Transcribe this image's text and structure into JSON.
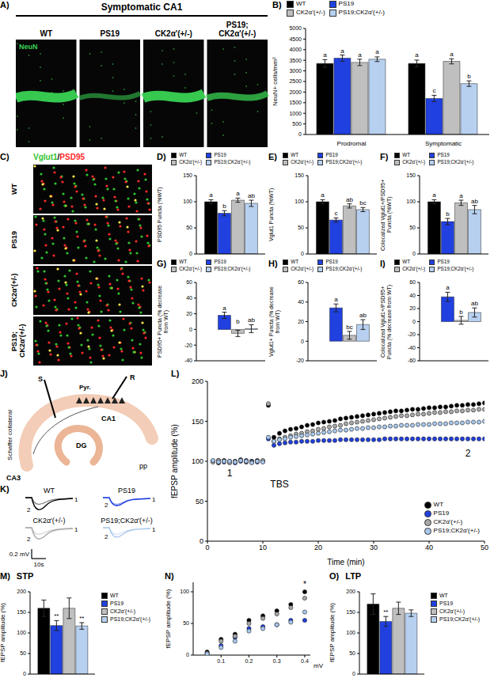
{
  "images": {
    "A": {
      "panel": "A)",
      "title": "Symptomatic CA1",
      "stain": "NeuN",
      "labels": [
        "WT",
        "PS19",
        "CK2α'(+/-)",
        "PS19; CK2α'(+/-)"
      ]
    },
    "C": {
      "panel": "C)",
      "channels": [
        {
          "name": "Vglut1",
          "color": "#2fc42f"
        },
        {
          "name": "PSD95",
          "color": "#ff2a2a"
        }
      ],
      "separator": "/",
      "labels": [
        "WT",
        "PS19",
        "CK2α'(+/-)",
        "PS19; CK2α'(+/-)"
      ]
    },
    "J": {
      "panel": "J)",
      "labels": {
        "stim": "S",
        "record": "R",
        "pyramidal": "Pyr.",
        "collateral": "Schaffer collateral",
        "ca1": "CA1",
        "ca3": "CA3",
        "dg": "DG",
        "pp": "pp"
      }
    },
    "K": {
      "panel": "K)",
      "labels": [
        "WT",
        "PS19",
        "CK2α'(+/-)",
        "PS19;CK2α'(+/-)"
      ],
      "trace_marks": [
        "1",
        "2"
      ],
      "scale_y": "0.2 mV",
      "scale_x": "10s"
    }
  },
  "chart_data": [
    {
      "panel": "B)",
      "type": "bar",
      "ylabel": "NeuN+ cells/mm²",
      "categories": [
        "Prodromal",
        "Symptomatic"
      ],
      "ylim": [
        0,
        5000
      ],
      "yticks": [
        0,
        500,
        1000,
        1500,
        2000,
        2500,
        3000,
        3500,
        4000,
        4500,
        5000
      ],
      "legend": "top",
      "series": [
        {
          "name": "WT",
          "color": "#000000",
          "values": [
            3350,
            3350
          ],
          "errors": [
            180,
            160
          ],
          "letters": [
            "a",
            "a"
          ]
        },
        {
          "name": "PS19",
          "color": "#2040e0",
          "values": [
            3600,
            1700
          ],
          "errors": [
            150,
            150
          ],
          "letters": [
            "a",
            "c"
          ]
        },
        {
          "name": "CK2α'(+/-)",
          "color": "#bfbfbf",
          "values": [
            3400,
            3450
          ],
          "errors": [
            150,
            120
          ],
          "letters": [
            "a",
            "a"
          ]
        },
        {
          "name": "PS19;CK2α'(+/-)",
          "color": "#b7d0f0",
          "values": [
            3550,
            2400
          ],
          "errors": [
            110,
            130
          ],
          "letters": [
            "a",
            "b"
          ]
        }
      ]
    },
    {
      "panel": "D)",
      "type": "bar",
      "ylabel": "PSD95 Puncta (%WT)",
      "categories": [
        null
      ],
      "ylim": [
        0,
        150
      ],
      "yticks": [
        0,
        50,
        100,
        150
      ],
      "legend": "top",
      "tick_labels": "y",
      "series": [
        {
          "name": "WT",
          "color": "#000000",
          "values": [
            100
          ],
          "errors": [
            4
          ],
          "letters": [
            "a"
          ]
        },
        {
          "name": "PS19",
          "color": "#2040e0",
          "values": [
            78
          ],
          "errors": [
            5
          ],
          "letters": [
            "b"
          ]
        },
        {
          "name": "CK2α'(+/-)",
          "color": "#bfbfbf",
          "values": [
            103
          ],
          "errors": [
            4
          ],
          "letters": [
            "a"
          ]
        },
        {
          "name": "PS19;CK2α'(+/-)",
          "color": "#b7d0f0",
          "values": [
            97
          ],
          "errors": [
            6
          ],
          "letters": [
            "ab"
          ]
        }
      ]
    },
    {
      "panel": "E)",
      "type": "bar",
      "ylabel": "Vglut1 Puncta (%WT)",
      "categories": [
        null
      ],
      "ylim": [
        0,
        150
      ],
      "yticks": [
        0,
        50,
        100,
        150
      ],
      "legend": "top",
      "tick_labels": "y",
      "series": [
        {
          "name": "WT",
          "color": "#000000",
          "values": [
            100
          ],
          "errors": [
            4
          ],
          "letters": [
            "a"
          ]
        },
        {
          "name": "PS19",
          "color": "#2040e0",
          "values": [
            65
          ],
          "errors": [
            4
          ],
          "letters": [
            "c"
          ]
        },
        {
          "name": "CK2α'(+/-)",
          "color": "#bfbfbf",
          "values": [
            92
          ],
          "errors": [
            4
          ],
          "letters": [
            "ab"
          ]
        },
        {
          "name": "PS19;CK2α'(+/-)",
          "color": "#b7d0f0",
          "values": [
            85
          ],
          "errors": [
            4
          ],
          "letters": [
            "bc"
          ]
        }
      ]
    },
    {
      "panel": "F)",
      "type": "bar",
      "ylabel": "Colocalized Vglut1+/PSD95+ Puncta (%WT)",
      "categories": [
        null
      ],
      "ylim": [
        0,
        150
      ],
      "yticks": [
        0,
        50,
        100,
        150
      ],
      "legend": "top",
      "tick_labels": "y",
      "series": [
        {
          "name": "WT",
          "color": "#000000",
          "values": [
            100
          ],
          "errors": [
            4
          ],
          "letters": [
            "a"
          ]
        },
        {
          "name": "PS19",
          "color": "#2040e0",
          "values": [
            62
          ],
          "errors": [
            6
          ],
          "letters": [
            "b"
          ]
        },
        {
          "name": "CK2α'(+/-)",
          "color": "#bfbfbf",
          "values": [
            98
          ],
          "errors": [
            5
          ],
          "letters": [
            "a"
          ]
        },
        {
          "name": "PS19;CK2α'(+/-)",
          "color": "#b7d0f0",
          "values": [
            85
          ],
          "errors": [
            8
          ],
          "letters": [
            "ab"
          ]
        }
      ]
    },
    {
      "panel": "G)",
      "type": "bar",
      "ylabel": "PSD95+ Puncta (% decrease from WT)",
      "categories": [
        null
      ],
      "ylim": [
        -40,
        60
      ],
      "yticks": [
        -40,
        -20,
        0,
        20,
        40,
        60
      ],
      "legend": "top",
      "tick_labels": "y",
      "series": [
        {
          "name": "WT",
          "color": "#000000",
          "values": [
            0
          ],
          "errors": [
            4
          ],
          "letters": [
            "b"
          ]
        },
        {
          "name": "PS19",
          "color": "#2040e0",
          "values": [
            18
          ],
          "errors": [
            4
          ],
          "letters": [
            "a"
          ]
        },
        {
          "name": "CK2α'(+/-)",
          "color": "#bfbfbf",
          "values": [
            -5
          ],
          "errors": [
            4
          ],
          "letters": [
            "b"
          ]
        },
        {
          "name": "PS19;CK2α'(+/-)",
          "color": "#b7d0f0",
          "values": [
            1
          ],
          "errors": [
            5
          ],
          "letters": [
            "ab"
          ]
        }
      ]
    },
    {
      "panel": "H)",
      "type": "bar",
      "ylabel": "Vglut1+ Puncta (% decrease from WT)",
      "categories": [
        null
      ],
      "ylim": [
        -20,
        60
      ],
      "yticks": [
        -20,
        0,
        20,
        40,
        60
      ],
      "legend": "top",
      "tick_labels": "y",
      "series": [
        {
          "name": "WT",
          "color": "#000000",
          "values": [
            0
          ],
          "errors": [
            4
          ],
          "letters": [
            "c"
          ]
        },
        {
          "name": "PS19",
          "color": "#2040e0",
          "values": [
            34
          ],
          "errors": [
            4
          ],
          "letters": [
            "a"
          ]
        },
        {
          "name": "CK2α'(+/-)",
          "color": "#bfbfbf",
          "values": [
            6
          ],
          "errors": [
            4
          ],
          "letters": [
            "bc"
          ]
        },
        {
          "name": "PS19;CK2α'(+/-)",
          "color": "#b7d0f0",
          "values": [
            17
          ],
          "errors": [
            5
          ],
          "letters": [
            "ab"
          ]
        }
      ]
    },
    {
      "panel": "I)",
      "type": "bar",
      "ylabel": "Colocalized Vglut1+/PSD95+ Puncta (% decrease from WT)",
      "categories": [
        null
      ],
      "ylim": [
        -60,
        60
      ],
      "yticks": [
        -60,
        -40,
        -20,
        0,
        20,
        40,
        60
      ],
      "legend": "top",
      "tick_labels": "y",
      "series": [
        {
          "name": "WT",
          "color": "#000000",
          "values": [
            0
          ],
          "errors": [
            6
          ],
          "letters": [
            "b"
          ]
        },
        {
          "name": "PS19",
          "color": "#2040e0",
          "values": [
            38
          ],
          "errors": [
            7
          ],
          "letters": [
            "a"
          ]
        },
        {
          "name": "CK2α'(+/-)",
          "color": "#bfbfbf",
          "values": [
            2
          ],
          "errors": [
            6
          ],
          "letters": [
            "b"
          ]
        },
        {
          "name": "PS19;CK2α'(+/-)",
          "color": "#b7d0f0",
          "values": [
            14
          ],
          "errors": [
            7
          ],
          "letters": [
            "ab"
          ]
        }
      ]
    },
    {
      "panel": "L)",
      "type": "scatter",
      "marker": "o",
      "xlabel": "Time (min)",
      "ylabel": "fEPSP amplitude (%)",
      "x": [
        1,
        2,
        3,
        4,
        5,
        6,
        7,
        8,
        9,
        10,
        11,
        12,
        13,
        14,
        15,
        16,
        17,
        18,
        19,
        20,
        21,
        22,
        23,
        24,
        25,
        26,
        27,
        28,
        29,
        30,
        31,
        32,
        33,
        34,
        35,
        36,
        37,
        38,
        39,
        40,
        41,
        42,
        43,
        44,
        45,
        46,
        47,
        48,
        49,
        50
      ],
      "xlim": [
        0,
        50
      ],
      "xticks": [
        0,
        10,
        20,
        30,
        40,
        50
      ],
      "ylim": [
        0,
        200
      ],
      "yticks": [
        0,
        50,
        100,
        150,
        200
      ],
      "legend": "lower right",
      "annotations": [
        {
          "text": "1",
          "x": 4,
          "y": 85
        },
        {
          "text": "2",
          "x": 47,
          "y": 110
        },
        {
          "text": "TBS",
          "x": 13,
          "y": 72
        }
      ],
      "series": [
        {
          "name": "WT",
          "color": "#000000",
          "values": [
            100,
            98,
            101,
            99,
            100,
            102,
            99,
            100,
            101,
            100,
            170,
            130,
            135,
            138,
            140,
            141,
            143,
            145,
            146,
            148,
            149,
            150,
            151,
            153,
            154,
            155,
            156,
            157,
            158,
            159,
            160,
            161,
            162,
            163,
            163,
            164,
            165,
            165,
            166,
            167,
            167,
            168,
            168,
            169,
            170,
            170,
            171,
            171,
            172,
            173
          ]
        },
        {
          "name": "PS19",
          "color": "#2040e0",
          "values": [
            100,
            101,
            99,
            100,
            98,
            100,
            101,
            100,
            99,
            100,
            128,
            120,
            122,
            123,
            124,
            124,
            125,
            125,
            125,
            126,
            126,
            126,
            126,
            127,
            127,
            127,
            127,
            127,
            127,
            127,
            127,
            128,
            128,
            128,
            128,
            128,
            128,
            128,
            128,
            128,
            128,
            128,
            128,
            128,
            128,
            128,
            128,
            128,
            128,
            128
          ]
        },
        {
          "name": "CK2α'(+/-)",
          "color": "#a8a8a8",
          "values": [
            99,
            101,
            100,
            98,
            100,
            101,
            100,
            99,
            100,
            101,
            172,
            125,
            128,
            130,
            132,
            134,
            135,
            137,
            138,
            140,
            141,
            143,
            144,
            145,
            147,
            148,
            149,
            150,
            151,
            152,
            153,
            154,
            155,
            156,
            157,
            157,
            158,
            159,
            159,
            160,
            161,
            161,
            162,
            162,
            163,
            163,
            164,
            164,
            165,
            165
          ]
        },
        {
          "name": "PS19;CK2α'(+/-)",
          "color": "#a9c8ec",
          "values": [
            101,
            99,
            100,
            100,
            99,
            101,
            100,
            98,
            100,
            99,
            130,
            125,
            127,
            128,
            130,
            131,
            132,
            133,
            134,
            135,
            136,
            137,
            138,
            139,
            139,
            140,
            141,
            141,
            142,
            142,
            143,
            143,
            144,
            144,
            145,
            145,
            145,
            146,
            146,
            146,
            147,
            147,
            147,
            148,
            148,
            148,
            149,
            149,
            149,
            150
          ]
        }
      ]
    },
    {
      "panel": "M)",
      "title": "STP",
      "type": "bar",
      "ylabel": "fEPSP amplitude (%)",
      "categories": [
        null
      ],
      "ylim": [
        0,
        200
      ],
      "yticks": [
        0,
        50,
        100,
        150,
        200
      ],
      "legend": "right",
      "tick_labels": "y",
      "series": [
        {
          "name": "WT",
          "color": "#000000",
          "values": [
            160
          ],
          "errors": [
            20
          ],
          "letters": [
            null
          ]
        },
        {
          "name": "PS19",
          "color": "#2040e0",
          "values": [
            118
          ],
          "errors": [
            12
          ],
          "letters": [
            "**"
          ]
        },
        {
          "name": "CK2α'(+/-)",
          "color": "#bfbfbf",
          "values": [
            160
          ],
          "errors": [
            25
          ],
          "letters": [
            null
          ]
        },
        {
          "name": "PS19;CK2α'(+/-)",
          "color": "#b7d0f0",
          "values": [
            117
          ],
          "errors": [
            8
          ],
          "letters": [
            "**"
          ]
        }
      ]
    },
    {
      "panel": "N)",
      "type": "scatter",
      "marker": "o",
      "xlabel": "mV",
      "ylabel": "fEPSP amplitude (%)",
      "x": [
        0.05,
        0.1,
        0.15,
        0.2,
        0.25,
        0.3,
        0.35,
        0.4
      ],
      "xlim": [
        0,
        0.42
      ],
      "xticks": [
        0.1,
        0.2,
        0.3,
        0.4
      ],
      "ylim": [
        0,
        115
      ],
      "yticks": [
        0,
        50,
        100
      ],
      "annotations": [
        {
          "text": "*",
          "x": 0.4,
          "y": 112
        }
      ],
      "series": [
        {
          "name": "WT",
          "color": "#000000",
          "values": [
            5,
            25,
            33,
            55,
            62,
            70,
            80,
            100
          ]
        },
        {
          "name": "PS19",
          "color": "#2040e0",
          "values": [
            2,
            15,
            28,
            42,
            45,
            48,
            55,
            55
          ]
        },
        {
          "name": "CK2α'(+/-)",
          "color": "#a8a8a8",
          "values": [
            3,
            22,
            30,
            50,
            58,
            65,
            75,
            90
          ]
        },
        {
          "name": "PS19;CK2α'(+/-)",
          "color": "#a9c8ec",
          "values": [
            2,
            12,
            22,
            38,
            42,
            48,
            52,
            68
          ]
        }
      ]
    },
    {
      "panel": "O)",
      "title": "LTP",
      "type": "bar",
      "ylabel": "fEPSP amplitude (%)",
      "categories": [
        null
      ],
      "ylim": [
        0,
        200
      ],
      "yticks": [
        0,
        50,
        100,
        150,
        200
      ],
      "legend": "right",
      "tick_labels": "y",
      "series": [
        {
          "name": "WT",
          "color": "#000000",
          "values": [
            170
          ],
          "errors": [
            25
          ],
          "letters": [
            null
          ]
        },
        {
          "name": "PS19",
          "color": "#2040e0",
          "values": [
            128
          ],
          "errors": [
            12
          ],
          "letters": [
            "**"
          ]
        },
        {
          "name": "CK2α'(+/-)",
          "color": "#bfbfbf",
          "values": [
            160
          ],
          "errors": [
            15
          ],
          "letters": [
            null
          ]
        },
        {
          "name": "PS19;CK2α'(+/-)",
          "color": "#b7d0f0",
          "values": [
            148
          ],
          "errors": [
            8
          ],
          "letters": [
            null
          ]
        }
      ]
    }
  ]
}
